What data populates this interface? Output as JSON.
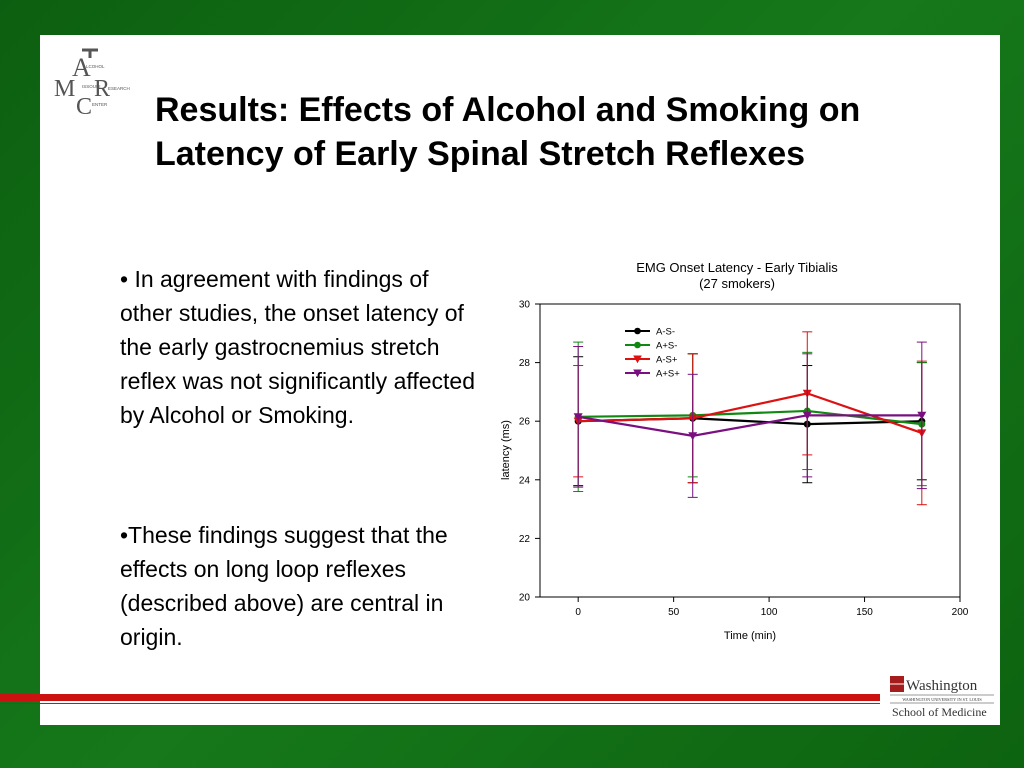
{
  "slide": {
    "title": "Results: Effects of Alcohol and Smoking on Latency of Early Spinal Stretch Reflexes",
    "bullets": [
      "• In agreement with findings of other studies, the onset latency of the early gastrocnemius stretch reflex was not significantly affected by Alcohol or Smoking.",
      "•These findings suggest that the effects on long loop reflexes (described above) are central in origin."
    ],
    "logo": {
      "icon": "amcr-logo",
      "words": [
        "LCOHOL",
        "ISSOURI",
        "ESEARCH",
        "ENTER"
      ]
    },
    "footer_logo": {
      "icon": "washington-university-logo",
      "line1": "Washington",
      "line2": "WASHINGTON UNIVERSITY IN ST. LOUIS",
      "line3": "School of Medicine"
    },
    "colors": {
      "background": "#0f6a12",
      "accent": "#cc1111"
    }
  },
  "chart_data": {
    "type": "line",
    "title": "EMG Onset Latency - Early Tibialis",
    "subtitle": "(27 smokers)",
    "xlabel": "Time (min)",
    "ylabel": "latency (ms)",
    "xlim": [
      -20,
      200
    ],
    "ylim": [
      20,
      30
    ],
    "xticks": [
      0,
      50,
      100,
      150,
      200
    ],
    "yticks": [
      20,
      22,
      24,
      26,
      28,
      30
    ],
    "grid": false,
    "legend_position": "top-left",
    "x": [
      0,
      60,
      120,
      180
    ],
    "series": [
      {
        "name": "A-S-",
        "color": "#000000",
        "marker": "circle",
        "values": [
          26.0,
          26.1,
          25.9,
          26.0
        ],
        "errors": [
          2.2,
          2.2,
          2.0,
          2.0
        ]
      },
      {
        "name": "A+S-",
        "color": "#118811",
        "marker": "circle",
        "values": [
          26.15,
          26.2,
          26.35,
          25.9
        ],
        "errors": [
          2.55,
          2.1,
          2.0,
          2.1
        ]
      },
      {
        "name": "A-S+",
        "color": "#dd1111",
        "marker": "triangle-down",
        "values": [
          26.0,
          26.1,
          26.95,
          25.6
        ],
        "errors": [
          1.9,
          2.2,
          2.1,
          2.45
        ]
      },
      {
        "name": "A+S+",
        "color": "#7a1080",
        "marker": "triangle-down",
        "values": [
          26.15,
          25.5,
          26.2,
          26.2
        ],
        "errors": [
          2.4,
          2.1,
          2.1,
          2.5
        ]
      }
    ]
  }
}
